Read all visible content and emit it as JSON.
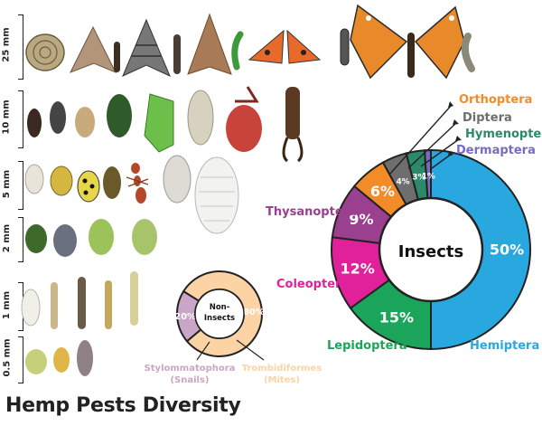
{
  "figure": {
    "title": "Hemp Pests Diversity"
  },
  "size_scale": [
    "25 mm",
    "10 mm",
    "5 mm",
    "2 mm",
    "1 mm",
    "0.5 mm"
  ],
  "chart_data": [
    {
      "type": "pie",
      "center_label": "Insects",
      "series": [
        {
          "name": "Hemiptera",
          "value": 50,
          "label": "50%",
          "color": "#29a8e0"
        },
        {
          "name": "Lepidoptera",
          "value": 15,
          "label": "15%",
          "color": "#1aa55a"
        },
        {
          "name": "Coleoptera",
          "value": 12,
          "label": "12%",
          "color": "#e0219a"
        },
        {
          "name": "Thysanoptera",
          "value": 9,
          "label": "9%",
          "color": "#9b3f8f"
        },
        {
          "name": "Orthoptera",
          "value": 6,
          "label": "6%",
          "color": "#f28c28"
        },
        {
          "name": "Diptera",
          "value": 4,
          "label": "4%",
          "color": "#6e6e6e"
        },
        {
          "name": "Hymenoptera",
          "value": 3,
          "label": "3%",
          "color": "#2a8a6a"
        },
        {
          "name": "Dermaptera",
          "value": 1,
          "label": "1%",
          "color": "#7a6bc0"
        }
      ]
    },
    {
      "type": "pie",
      "center_label": "Non-\nInsects",
      "series": [
        {
          "name": "Trombidiformes (Mites)",
          "value": 80,
          "label": "80%",
          "color": "#fcd3a4"
        },
        {
          "name": "Stylommatophora (Snails)",
          "value": 20,
          "label": "20%",
          "color": "#c9a6c8"
        }
      ]
    }
  ],
  "category_labels": {
    "orthoptera": "Orthoptera",
    "diptera": "Diptera",
    "hymenoptera": "Hymenoptera",
    "dermaptera": "Dermaptera",
    "thysanoptera": "Thysanoptera",
    "coleoptera": "Coleoptera",
    "lepidoptera": "Lepidoptera",
    "hemiptera": "Hemiptera",
    "stylommatophora": "Stylommatophora",
    "snails": "(Snails)",
    "trombidiformes": "Trombidiformes",
    "mites": "(Mites)"
  },
  "colors": {
    "orthoptera": "#f28c28",
    "diptera": "#6e6e6e",
    "hymenoptera": "#2a8a6a",
    "dermaptera": "#7a6bc0",
    "thysanoptera": "#9b3f8f",
    "coleoptera": "#e0219a",
    "lepidoptera": "#1aa55a",
    "hemiptera": "#29a8e0",
    "stylommatophora": "#c9a6c8",
    "trombidiformes": "#fcd3a4"
  },
  "icons": [
    "snail-icon",
    "moth-icon",
    "caterpillar-icon",
    "butterfly-icon",
    "beetle-icon",
    "weevil-icon",
    "earwig-icon",
    "aphid-icon",
    "mite-icon",
    "thrips-icon",
    "ladybug-icon",
    "ant-icon",
    "mealybug-icon"
  ]
}
